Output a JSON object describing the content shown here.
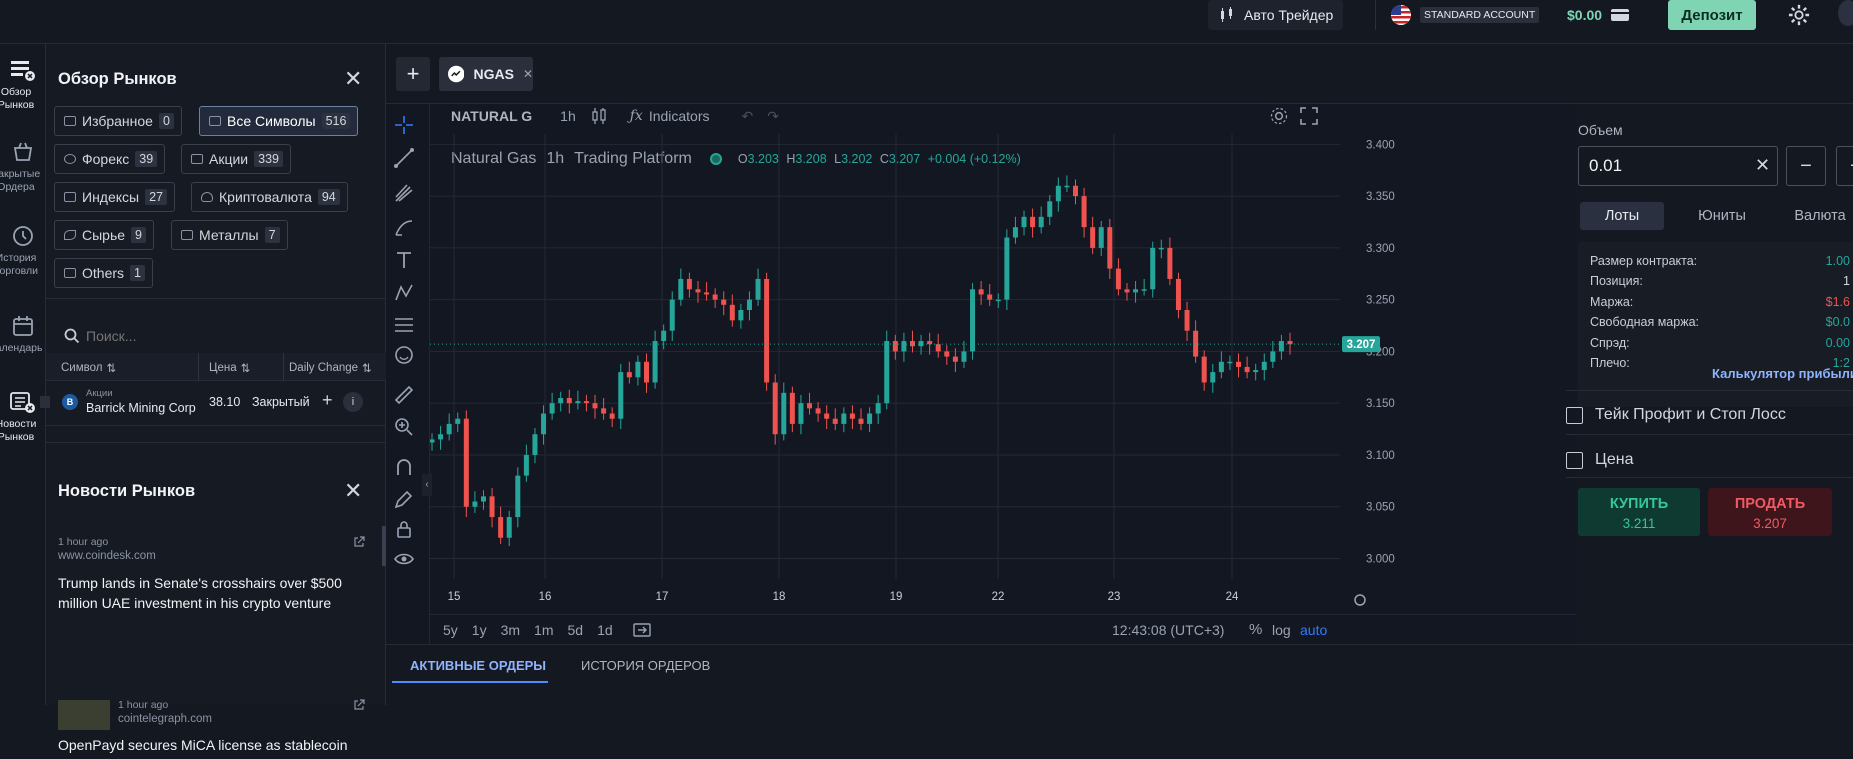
{
  "header": {
    "auto_trader": "Авто Трейдер",
    "account_type": "STANDARD ACCOUNT",
    "balance": "$0.00",
    "deposit": "Депозит"
  },
  "rail": [
    {
      "label": "Обзор Рынков",
      "icon": "market-overview-icon"
    },
    {
      "label": "Закрытые Ордера",
      "icon": "closed-orders-icon"
    },
    {
      "label": "История Торговли",
      "icon": "history-icon"
    },
    {
      "label": "Календарь",
      "icon": "calendar-icon"
    },
    {
      "label": "Новости Рынков",
      "icon": "news-icon"
    }
  ],
  "market": {
    "title": "Обзор Рынков",
    "chips": [
      {
        "label": "Избранное",
        "count": "0"
      },
      {
        "label": "Все Символы",
        "count": "516"
      },
      {
        "label": "Форекс",
        "count": "39"
      },
      {
        "label": "Акции",
        "count": "339"
      },
      {
        "label": "Индексы",
        "count": "27"
      },
      {
        "label": "Криптовалюта",
        "count": "94"
      },
      {
        "label": "Сырье",
        "count": "9"
      },
      {
        "label": "Металлы",
        "count": "7"
      },
      {
        "label": "Others",
        "count": "1"
      }
    ],
    "search_placeholder": "Поиск...",
    "columns": [
      "Символ",
      "Цена",
      "Daily Change"
    ],
    "row": {
      "category": "Акции",
      "name": "Barrick Mining Corp",
      "price": "38.10",
      "status": "Закрытый"
    }
  },
  "news": {
    "title": "Новости Рынков",
    "items": [
      {
        "time": "1 hour ago",
        "source": "www.coindesk.com",
        "headline": "Trump lands in Senate's crosshairs over $500 million UAE investment in his crypto venture"
      },
      {
        "time": "1 hour ago",
        "source": "cointelegraph.com",
        "headline": "OpenPayd secures MiCA license as stablecoin"
      }
    ]
  },
  "tabs": {
    "symbol": "NGAS"
  },
  "chart_header": {
    "symbol": "NATURAL G",
    "interval": "1h",
    "indicators": "Indicators",
    "legend_name": "Natural Gas",
    "legend_interval": "1h",
    "legend_platform": "Trading Platform",
    "o": "3.203",
    "h": "3.208",
    "l": "3.202",
    "c": "3.207",
    "change": "+0.004 (+0.12%)",
    "last_price": "3.207"
  },
  "chart_footer": {
    "ranges": [
      "5y",
      "1y",
      "3m",
      "1m",
      "5d",
      "1d"
    ],
    "time": "12:43:08 (UTC+3)",
    "pct": "%",
    "log": "log",
    "auto": "auto"
  },
  "chart_data": {
    "type": "candlestick",
    "xticks": [
      "15",
      "16",
      "17",
      "18",
      "19",
      "22",
      "23",
      "24"
    ],
    "yticks": [
      "3.400",
      "3.350",
      "3.300",
      "3.250",
      "3.200",
      "3.150",
      "3.100",
      "3.050",
      "3.000"
    ],
    "ylim": [
      2.985,
      3.41
    ],
    "closes": [
      3.115,
      3.12,
      3.13,
      3.135,
      3.05,
      3.055,
      3.06,
      3.04,
      3.02,
      3.04,
      3.08,
      3.1,
      3.12,
      3.14,
      3.15,
      3.155,
      3.15,
      3.152,
      3.15,
      3.145,
      3.14,
      3.135,
      3.18,
      3.175,
      3.19,
      3.17,
      3.21,
      3.22,
      3.25,
      3.27,
      3.26,
      3.257,
      3.255,
      3.25,
      3.245,
      3.23,
      3.24,
      3.25,
      3.27,
      3.17,
      3.12,
      3.16,
      3.13,
      3.15,
      3.145,
      3.14,
      3.135,
      3.13,
      3.14,
      3.135,
      3.13,
      3.14,
      3.15,
      3.21,
      3.2,
      3.21,
      3.205,
      3.21,
      3.207,
      3.2,
      3.195,
      3.19,
      3.2,
      3.26,
      3.255,
      3.25,
      3.25,
      3.31,
      3.32,
      3.33,
      3.32,
      3.33,
      3.345,
      3.36,
      3.36,
      3.35,
      3.32,
      3.3,
      3.32,
      3.28,
      3.26,
      3.257,
      3.26,
      3.26,
      3.3,
      3.3,
      3.27,
      3.24,
      3.22,
      3.195,
      3.17,
      3.18,
      3.19,
      3.19,
      3.185,
      3.18,
      3.182,
      3.19,
      3.2,
      3.21,
      3.207
    ],
    "timeframe": "1h",
    "colors": {
      "up": "#26a69a",
      "down": "#ef5350",
      "grid": "#242936"
    }
  },
  "trade": {
    "volume_label": "Объем",
    "volume_value": "0.01",
    "unit_tabs": [
      "Лоты",
      "Юниты",
      "Валюта"
    ],
    "info": [
      {
        "label": "Размер контракта:",
        "value": "1.00",
        "color": "#26a69a"
      },
      {
        "label": "Позиция:",
        "value": "1",
        "color": "#d3d7de"
      },
      {
        "label": "Маржа:",
        "value": "$1.6",
        "color": "#ef5350"
      },
      {
        "label": "Свободная маржа:",
        "value": "$0.0",
        "color": "#26a69a"
      },
      {
        "label": "Спрэд:",
        "value": "0.00",
        "color": "#26a69a"
      },
      {
        "label": "Плечо:",
        "value": "1:2",
        "color": "#26a69a"
      }
    ],
    "calculator": "Калькулятор прибыли",
    "tp_sl": "Тейк Профит и Стоп Лосс",
    "price_label": "Цена",
    "buy_label": "КУПИТЬ",
    "buy_price": "3.211",
    "sell_label": "ПРОДАТЬ",
    "sell_price": "3.207"
  },
  "orders": {
    "tabs": [
      "АКТИВНЫЕ ОРДЕРЫ",
      "ИСТОРИЯ ОРДЕРОВ"
    ]
  }
}
